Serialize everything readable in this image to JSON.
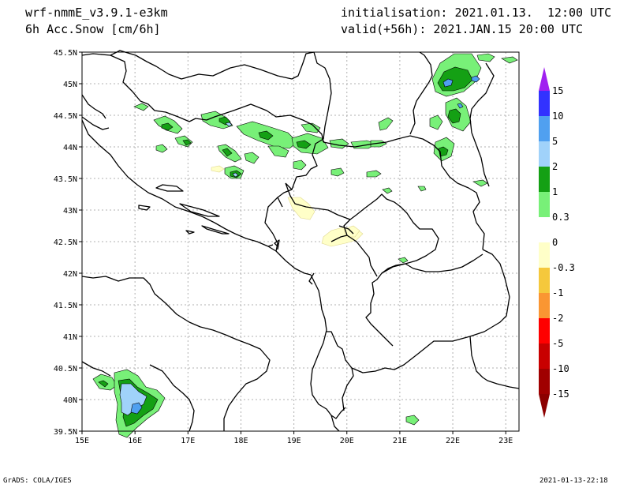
{
  "header": {
    "model": "wrf-nmmE_v3.9.1-e3km",
    "variable": "6h Acc.Snow [cm/6h]",
    "init": "initialisation: 2021.01.13.  12:00 UTC",
    "valid": "valid(+56h): 2021.JAN.15 20:00 UTC"
  },
  "footer": {
    "credit": "GrADS: COLA/IGES",
    "timestamp": "2021-01-13-22:18"
  },
  "axes": {
    "lat_labels": [
      "45.5N",
      "45N",
      "44.5N",
      "44N",
      "43.5N",
      "43N",
      "42.5N",
      "42N",
      "41.5N",
      "41N",
      "40.5N",
      "40N",
      "39.5N"
    ],
    "lon_labels": [
      "15E",
      "16E",
      "17E",
      "18E",
      "19E",
      "20E",
      "21E",
      "22E",
      "23E"
    ]
  },
  "colorbar": {
    "labels": [
      "15",
      "10",
      "5",
      "2",
      "1",
      "0.3",
      "0",
      "-0.3",
      "-1",
      "-2",
      "-5",
      "-10",
      "-15"
    ],
    "colors": [
      "#a020f0",
      "#3232ff",
      "#50a0f0",
      "#a0d2fa",
      "#14a014",
      "#78f078",
      "#ffffff",
      "#ffffc8",
      "#f5c83c",
      "#fa9632",
      "#ff0000",
      "#c80000",
      "#a00000",
      "#8c0000"
    ]
  },
  "legend_colors": {
    "coast": "#000000",
    "grid": "#aaaaaa"
  }
}
